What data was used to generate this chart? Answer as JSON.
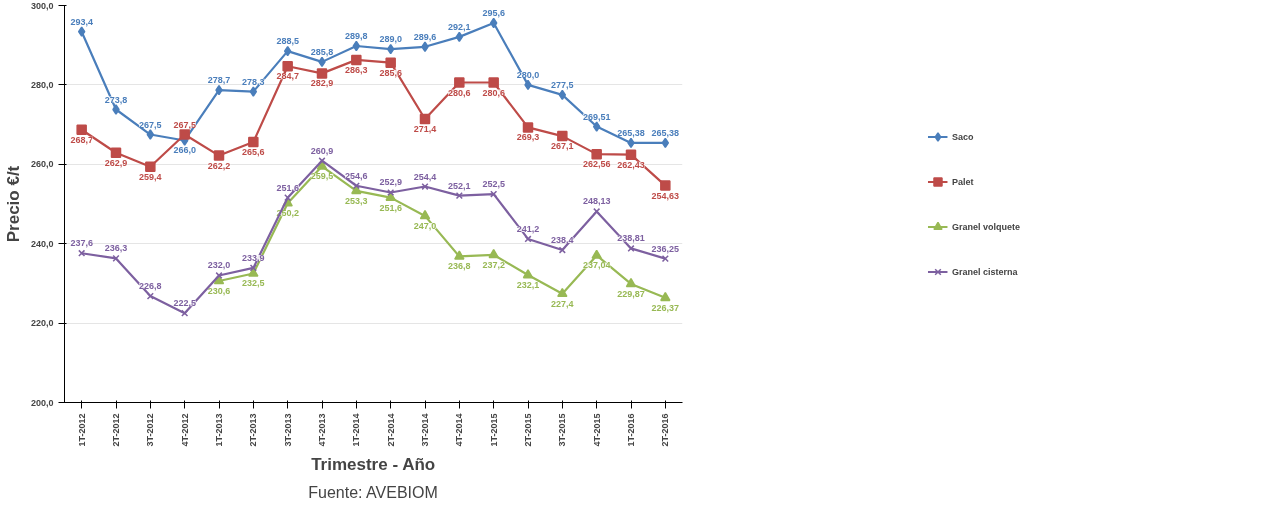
{
  "chart_data": {
    "type": "line",
    "xlabel": "Trimestre - Año",
    "ylabel": "Precio €/t",
    "annotations": [
      "Fuente: AVEBIOM"
    ],
    "categories": [
      "1T-2012",
      "2T-2012",
      "3T-2012",
      "4T-2012",
      "1T-2013",
      "2T-2013",
      "3T-2013",
      "4T-2013",
      "1T-2014",
      "2T-2014",
      "3T-2014",
      "4T-2014",
      "1T-2015",
      "2T-2015",
      "3T-2015",
      "4T-2015",
      "1T-2016",
      "2T-2016"
    ],
    "ylim": [
      200,
      300
    ],
    "yticks": [
      {
        "value": 200,
        "label": "200,0"
      },
      {
        "value": 220,
        "label": "220,0"
      },
      {
        "value": 240,
        "label": "240,0"
      },
      {
        "value": 260,
        "label": "260,0"
      },
      {
        "value": 280,
        "label": "280,0"
      },
      {
        "value": 300,
        "label": "300,0"
      }
    ],
    "grid": "y",
    "legend": "right",
    "series": [
      {
        "name": "Saco",
        "color": "#4a7ebb",
        "marker": "diamond",
        "values": [
          293.4,
          273.8,
          267.5,
          266.0,
          278.7,
          278.3,
          288.5,
          285.8,
          289.8,
          289.0,
          289.6,
          292.1,
          295.6,
          280.0,
          277.5,
          269.51,
          265.38,
          265.38
        ],
        "value_labels": [
          "293,4",
          "273,8",
          "267,5",
          "266,0",
          "278,7",
          "278,3",
          "288,5",
          "285,8",
          "289,8",
          "289,0",
          "289,6",
          "292,1",
          "295,6",
          "280,0",
          "277,5",
          "269,51",
          "265,38",
          "265,38"
        ]
      },
      {
        "name": "Palet",
        "color": "#be4b48",
        "marker": "square",
        "values": [
          268.7,
          262.9,
          259.4,
          267.5,
          262.2,
          265.6,
          284.7,
          282.9,
          286.3,
          285.6,
          271.4,
          280.6,
          280.6,
          269.3,
          267.1,
          262.56,
          262.43,
          254.63
        ],
        "value_labels": [
          "268,7",
          "262,9",
          "259,4",
          "267,5",
          "262,2",
          "265,6",
          "284,7",
          "282,9",
          "286,3",
          "285,6",
          "271,4",
          "280,6",
          "280,6",
          "269,3",
          "267,1",
          "262,56",
          "262,43",
          "254,63"
        ]
      },
      {
        "name": "Granel volquete",
        "color": "#98b954",
        "marker": "triangle",
        "values": [
          null,
          null,
          null,
          null,
          230.6,
          232.5,
          250.2,
          259.5,
          253.3,
          251.6,
          247.0,
          236.8,
          237.2,
          232.1,
          227.4,
          237.04,
          229.87,
          226.37
        ],
        "value_labels": [
          null,
          null,
          null,
          null,
          "230,6",
          "232,5",
          "250,2",
          "259,5",
          "253,3",
          "251,6",
          "247,0",
          "236,8",
          "237,2",
          "232,1",
          "227,4",
          "237,04",
          "229,87",
          "226,37"
        ]
      },
      {
        "name": "Granel cisterna",
        "color": "#7d60a0",
        "marker": "x",
        "values": [
          237.6,
          236.3,
          226.8,
          222.5,
          232.0,
          233.9,
          251.6,
          260.9,
          254.6,
          252.9,
          254.4,
          252.1,
          252.5,
          241.2,
          238.4,
          248.13,
          238.81,
          236.25
        ],
        "value_labels": [
          "237,6",
          "236,3",
          "226,8",
          "222,5",
          "232,0",
          "233,9",
          "251,6",
          "260,9",
          "254,6",
          "252,9",
          "254,4",
          "252,1",
          "252,5",
          "241,2",
          "238,4",
          "248,13",
          "238,81",
          "236,25"
        ]
      }
    ]
  }
}
